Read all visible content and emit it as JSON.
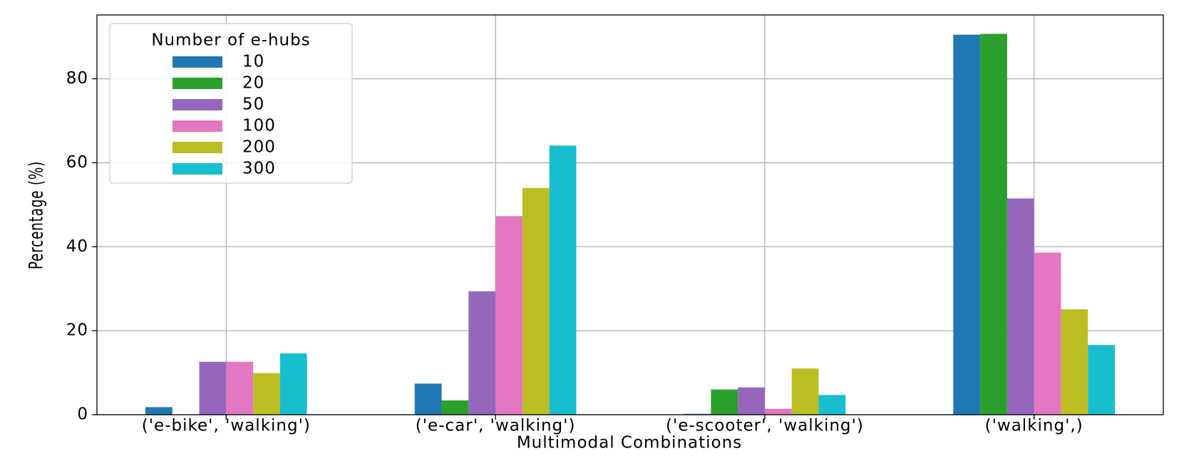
{
  "chart_data": {
    "type": "bar",
    "x_label": "Multimodal Combinations",
    "y_label": "Percentage (%)",
    "legend_title": "Number of e-hubs",
    "legend_position": "upper left",
    "grid": true,
    "categories": [
      "('e-bike', 'walking')",
      "('e-car', 'walking')",
      "('e-scooter', 'walking')",
      "('walking',)"
    ],
    "series": [
      {
        "name": "10",
        "color": "#1f77b4",
        "values": [
          1.8,
          7.4,
          0.2,
          90.5
        ]
      },
      {
        "name": "20",
        "color": "#2ca02c",
        "values": [
          0,
          3.4,
          6.0,
          90.7
        ]
      },
      {
        "name": "50",
        "color": "#9467bd",
        "values": [
          12.6,
          29.4,
          6.5,
          51.5
        ]
      },
      {
        "name": "100",
        "color": "#e377c2",
        "values": [
          12.6,
          47.3,
          1.4,
          38.6
        ]
      },
      {
        "name": "200",
        "color": "#bcbd22",
        "values": [
          9.9,
          54.0,
          11.0,
          25.1
        ]
      },
      {
        "name": "300",
        "color": "#17becf",
        "values": [
          14.6,
          64.1,
          4.7,
          16.6
        ]
      }
    ],
    "ylim": [
      0,
      95.2
    ],
    "yticks": [
      0,
      20,
      40,
      60,
      80
    ]
  }
}
